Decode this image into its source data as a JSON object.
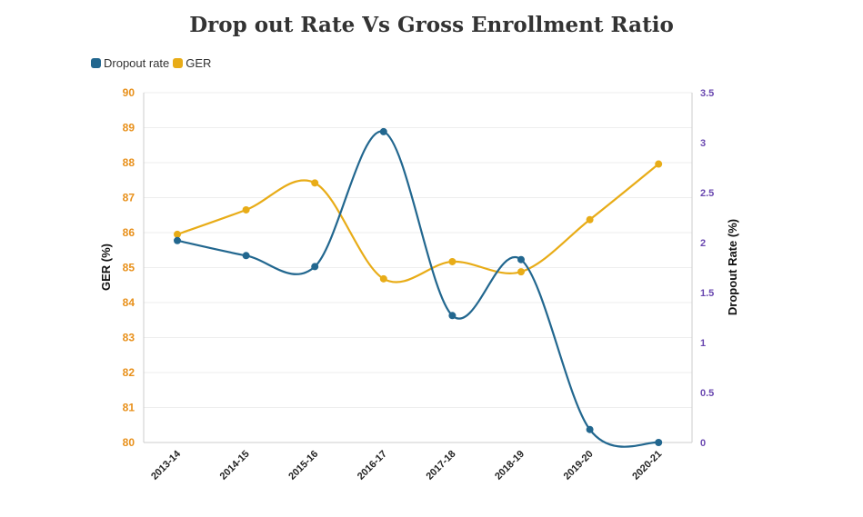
{
  "chart_data": {
    "type": "line",
    "title": "Drop out Rate Vs Gross Enrollment Ratio",
    "categories": [
      "2013-14",
      "2014-15",
      "2015-16",
      "2016-17",
      "2017-18",
      "2018-19",
      "2019-20",
      "2020-21"
    ],
    "series": [
      {
        "name": "Dropout rate",
        "axis": "right",
        "color": "#22678f",
        "values": [
          2.02,
          1.87,
          1.76,
          3.11,
          1.27,
          1.83,
          0.13,
          0.0
        ]
      },
      {
        "name": "GER",
        "axis": "left",
        "color": "#e8ac17",
        "values": [
          85.95,
          86.65,
          87.42,
          84.68,
          85.17,
          84.88,
          86.37,
          87.96
        ]
      }
    ],
    "y_left": {
      "label": "GER (%)",
      "min": 80,
      "max": 90,
      "ticks": [
        "80",
        "81",
        "82",
        "83",
        "84",
        "85",
        "86",
        "87",
        "88",
        "89",
        "90"
      ],
      "color": "#e8901a"
    },
    "y_right": {
      "label": "Dropout Rate (%)",
      "min": 0,
      "max": 3.5,
      "ticks": [
        "0",
        "0.5",
        "1",
        "1.5",
        "2",
        "2.5",
        "3",
        "3.5"
      ],
      "color": "#6a48b0"
    },
    "grid": true,
    "legend_position": "top-left",
    "line_style": "smooth"
  }
}
